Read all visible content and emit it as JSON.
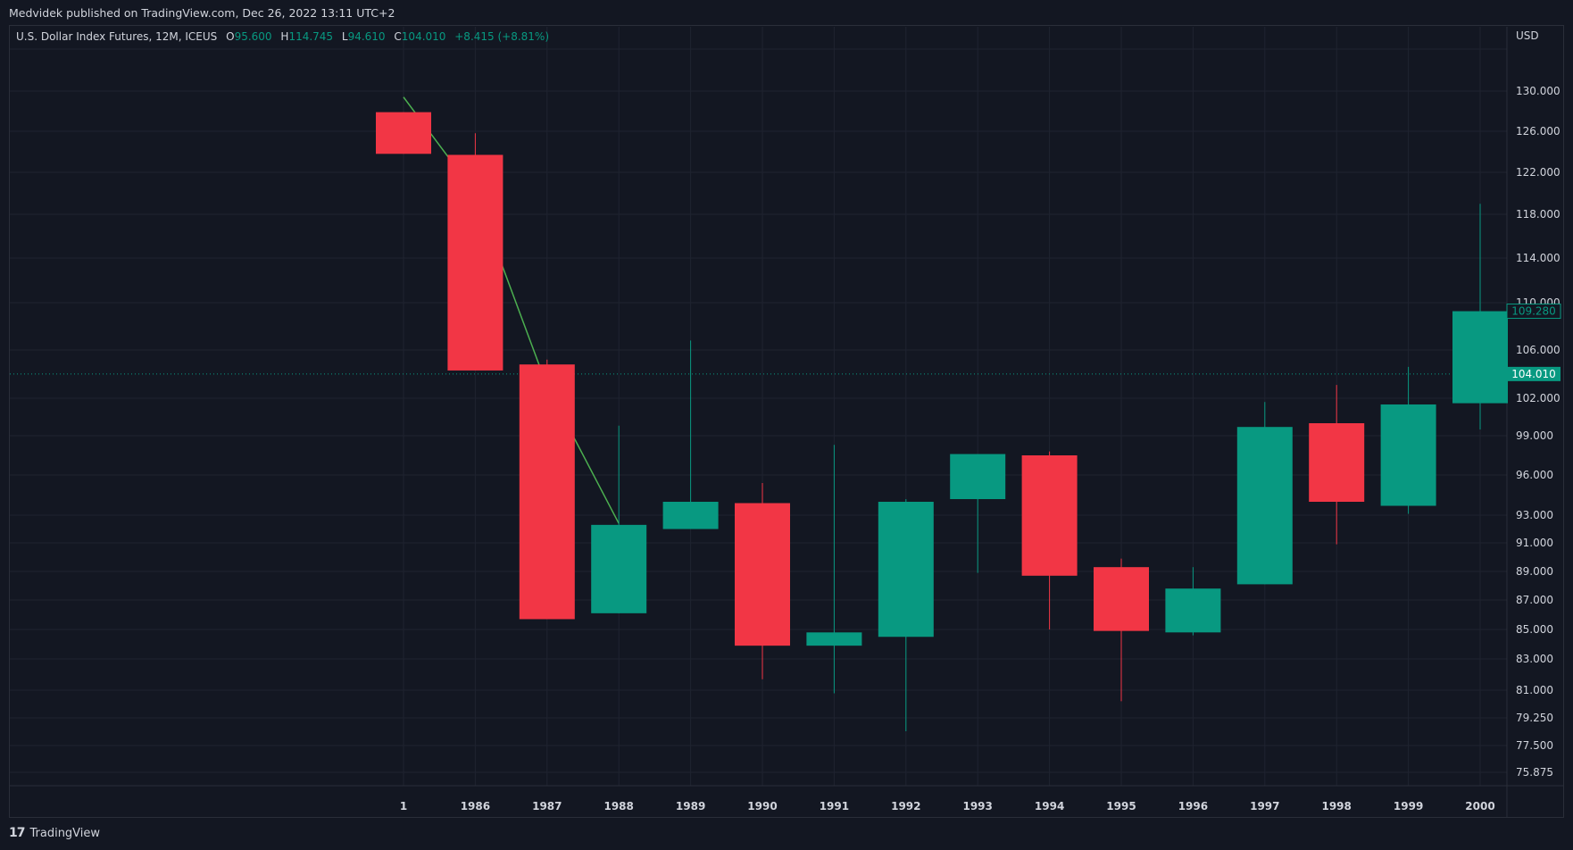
{
  "header": {
    "published": "Medvidek published on TradingView.com, Dec 26, 2022 13:11 UTC+2"
  },
  "legend": {
    "symbol": "U.S. Dollar Index Futures, 12M, ICEUS",
    "o_label": "O",
    "o_value": "95.600",
    "h_label": "H",
    "h_value": "114.745",
    "l_label": "L",
    "l_value": "94.610",
    "c_label": "C",
    "c_value": "104.010",
    "change": "+8.415 (+8.81%)"
  },
  "footer": {
    "brand": "TradingView",
    "logo_text": "17"
  },
  "colors": {
    "up": "#089981",
    "down": "#f23645",
    "line": "#4caf50",
    "grid": "#1f2330",
    "bg": "#131722"
  },
  "chart_data": {
    "type": "candlestick",
    "currency_label": "USD",
    "price_ticks": [
      "130.000",
      "126.000",
      "122.000",
      "118.000",
      "114.000",
      "110.000",
      "106.000",
      "102.000",
      "99.000",
      "96.000",
      "93.000",
      "91.000",
      "89.000",
      "87.000",
      "85.000",
      "83.000",
      "81.000",
      "79.250",
      "77.500",
      "75.875"
    ],
    "categories": [
      "1",
      "1986",
      "1987",
      "1988",
      "1989",
      "1990",
      "1991",
      "1992",
      "1993",
      "1994",
      "1995",
      "1996",
      "1997",
      "1998",
      "1999",
      "2000"
    ],
    "candles": [
      {
        "x": "1",
        "open": 127.9,
        "high": 127.9,
        "low": 123.8,
        "close": 123.8
      },
      {
        "x": "1986",
        "open": 123.7,
        "high": 125.8,
        "low": 104.3,
        "close": 104.3
      },
      {
        "x": "1987",
        "open": 104.8,
        "high": 105.2,
        "low": 85.7,
        "close": 85.7
      },
      {
        "x": "1988",
        "open": 86.1,
        "high": 99.8,
        "low": 86.1,
        "close": 92.3
      },
      {
        "x": "1989",
        "open": 92.0,
        "high": 106.8,
        "low": 92.0,
        "close": 94.0
      },
      {
        "x": "1990",
        "open": 93.9,
        "high": 95.4,
        "low": 81.7,
        "close": 83.9
      },
      {
        "x": "1991",
        "open": 83.9,
        "high": 98.3,
        "low": 80.8,
        "close": 84.8
      },
      {
        "x": "1992",
        "open": 84.5,
        "high": 94.2,
        "low": 78.4,
        "close": 94.0
      },
      {
        "x": "1993",
        "open": 94.2,
        "high": 97.6,
        "low": 88.9,
        "close": 97.6
      },
      {
        "x": "1994",
        "open": 97.5,
        "high": 97.8,
        "low": 85.0,
        "close": 88.7
      },
      {
        "x": "1995",
        "open": 89.3,
        "high": 89.9,
        "low": 80.3,
        "close": 84.9
      },
      {
        "x": "1996",
        "open": 84.8,
        "high": 89.3,
        "low": 84.6,
        "close": 87.8
      },
      {
        "x": "1997",
        "open": 88.1,
        "high": 101.7,
        "low": 88.1,
        "close": 99.7
      },
      {
        "x": "1998",
        "open": 100.0,
        "high": 103.1,
        "low": 90.9,
        "close": 94.0
      },
      {
        "x": "1999",
        "open": 93.7,
        "high": 104.6,
        "low": 93.1,
        "close": 101.5
      },
      {
        "x": "2000",
        "open": 101.6,
        "high": 119.0,
        "low": 99.5,
        "close": 109.28
      }
    ],
    "line_series": [
      {
        "x": "1",
        "y": 129.4
      },
      {
        "x": "1986",
        "y": 120.0
      },
      {
        "x": "1987",
        "y": 103.0
      },
      {
        "x": "1988",
        "y": 92.4
      }
    ],
    "current_price": "104.010",
    "current_price_value": 104.01,
    "last_candle_label": "109.280",
    "last_candle_value": 109.28,
    "grid": true
  }
}
